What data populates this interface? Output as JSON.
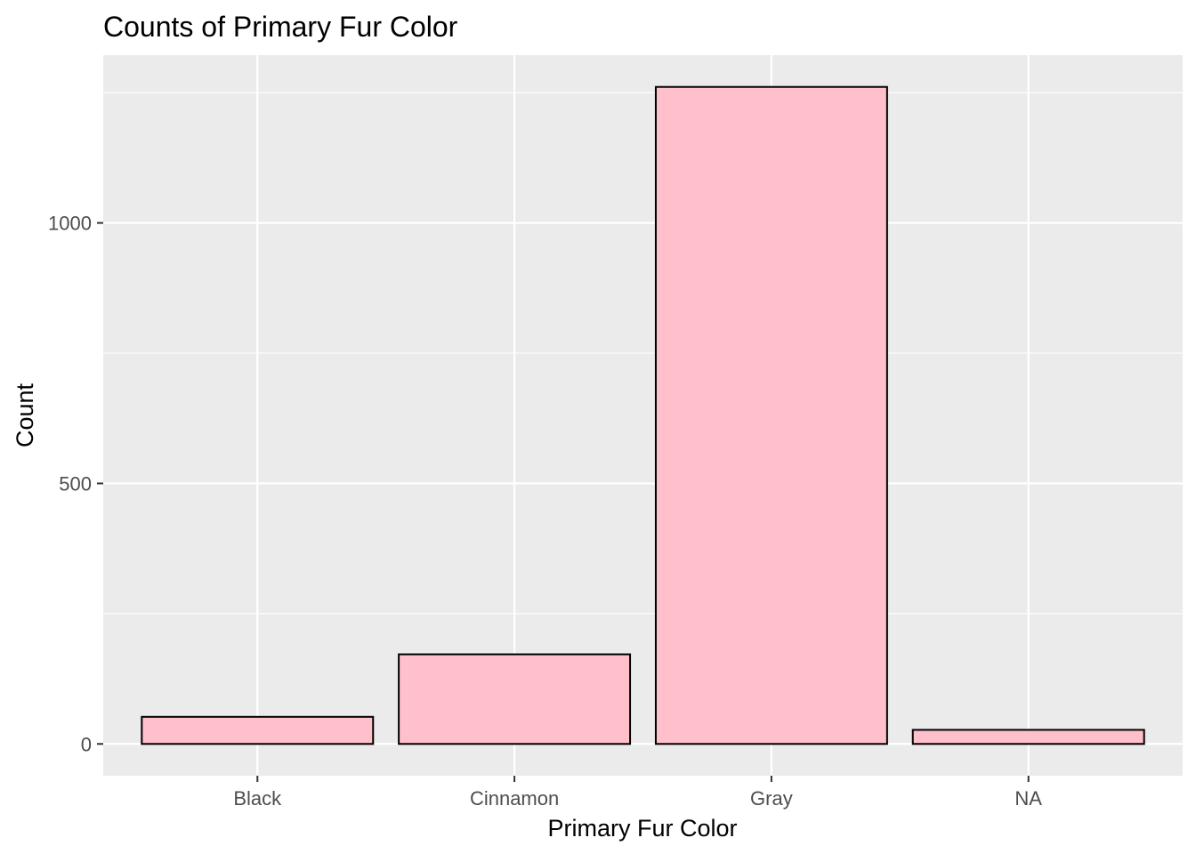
{
  "chart_data": {
    "type": "bar",
    "title": "Counts of Primary Fur Color",
    "xlabel": "Primary Fur Color",
    "ylabel": "Count",
    "categories": [
      "Black",
      "Cinnamon",
      "Gray",
      "NA"
    ],
    "values": [
      52,
      172,
      1261,
      27
    ],
    "ylim": [
      -61,
      1322
    ],
    "y_major_ticks": [
      0,
      500,
      1000
    ],
    "y_minor_ticks": [
      250,
      750,
      1250
    ],
    "grid": true,
    "legend": "none",
    "colors": {
      "bar_fill": "#FFC0CB",
      "bar_stroke": "#000000",
      "panel_background": "#EBEBEB",
      "grid": "#FFFFFF",
      "tick_label": "#4D4D4D",
      "tick_mark": "#333333"
    }
  }
}
